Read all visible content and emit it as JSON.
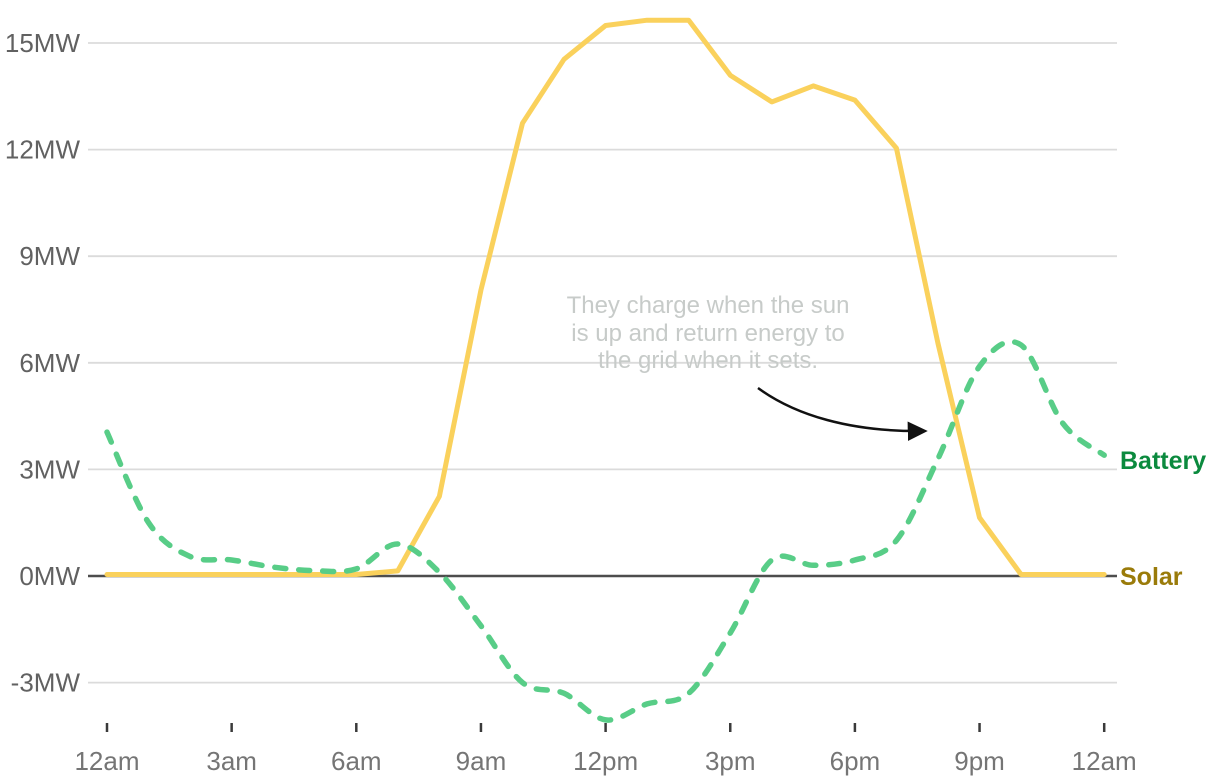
{
  "chart_data": {
    "type": "line",
    "x_unit": "hour-of-day",
    "x_hours": [
      0,
      1,
      2,
      3,
      4,
      5,
      6,
      7,
      8,
      9,
      10,
      11,
      12,
      13,
      14,
      15,
      16,
      17,
      18,
      19,
      20,
      21,
      22,
      23,
      24
    ],
    "series": [
      {
        "name": "Solar",
        "color": "#FAD15C",
        "style": "solid",
        "values": [
          0,
          0,
          0,
          0,
          0,
          0,
          0,
          0.1,
          2.2,
          8.0,
          12.7,
          14.5,
          15.45,
          15.6,
          15.6,
          14.05,
          13.3,
          13.75,
          13.35,
          12.0,
          6.5,
          1.6,
          0,
          0,
          0
        ]
      },
      {
        "name": "Battery",
        "color": "#58CD87",
        "style": "dashed",
        "values": [
          4.05,
          1.5,
          0.55,
          0.45,
          0.25,
          0.15,
          0.2,
          0.9,
          0.1,
          -1.4,
          -3.0,
          -3.3,
          -4.05,
          -3.6,
          -3.3,
          -1.6,
          0.45,
          0.3,
          0.45,
          1.0,
          3.3,
          5.9,
          6.5,
          4.3,
          3.4
        ]
      }
    ],
    "ylabel": "MW",
    "xlabel": "",
    "ylim": [
      -4.6,
      16
    ],
    "grid": "horizontal",
    "zero_line": true,
    "legend_position": "right",
    "y_ticks": [
      {
        "value": 15,
        "label": "15MW"
      },
      {
        "value": 12,
        "label": "12MW"
      },
      {
        "value": 9,
        "label": "9MW"
      },
      {
        "value": 6,
        "label": "6MW"
      },
      {
        "value": 3,
        "label": "3MW"
      },
      {
        "value": 0,
        "label": "0MW"
      },
      {
        "value": -3,
        "label": "-3MW"
      }
    ],
    "x_tick_labels": [
      {
        "hour": 0,
        "label": "12am"
      },
      {
        "hour": 3,
        "label": "3am"
      },
      {
        "hour": 6,
        "label": "6am"
      },
      {
        "hour": 9,
        "label": "9am"
      },
      {
        "hour": 12,
        "label": "12pm"
      },
      {
        "hour": 15,
        "label": "3pm"
      },
      {
        "hour": 18,
        "label": "6pm"
      },
      {
        "hour": 21,
        "label": "9pm"
      },
      {
        "hour": 24,
        "label": "12am"
      }
    ],
    "annotation": {
      "line1": "They charge when the sun",
      "line2": "is up and return energy to",
      "line3": "the grid when it sets."
    },
    "legend": {
      "battery_label": "Battery",
      "solar_label": "Solar"
    },
    "colors": {
      "solar_line": "#FAD15C",
      "battery_line": "#58CD87",
      "solar_label_text": "#9A7B0A",
      "battery_label_text": "#0B8A3E",
      "gridline": "#DBDBDB",
      "zero_line": "#4D4D4D",
      "annotation_text": "#C7CBC9",
      "arrow": "#111111",
      "axis_tick": "#3A3A3A",
      "y_label_text": "#616161",
      "x_label_text": "#757575"
    }
  }
}
